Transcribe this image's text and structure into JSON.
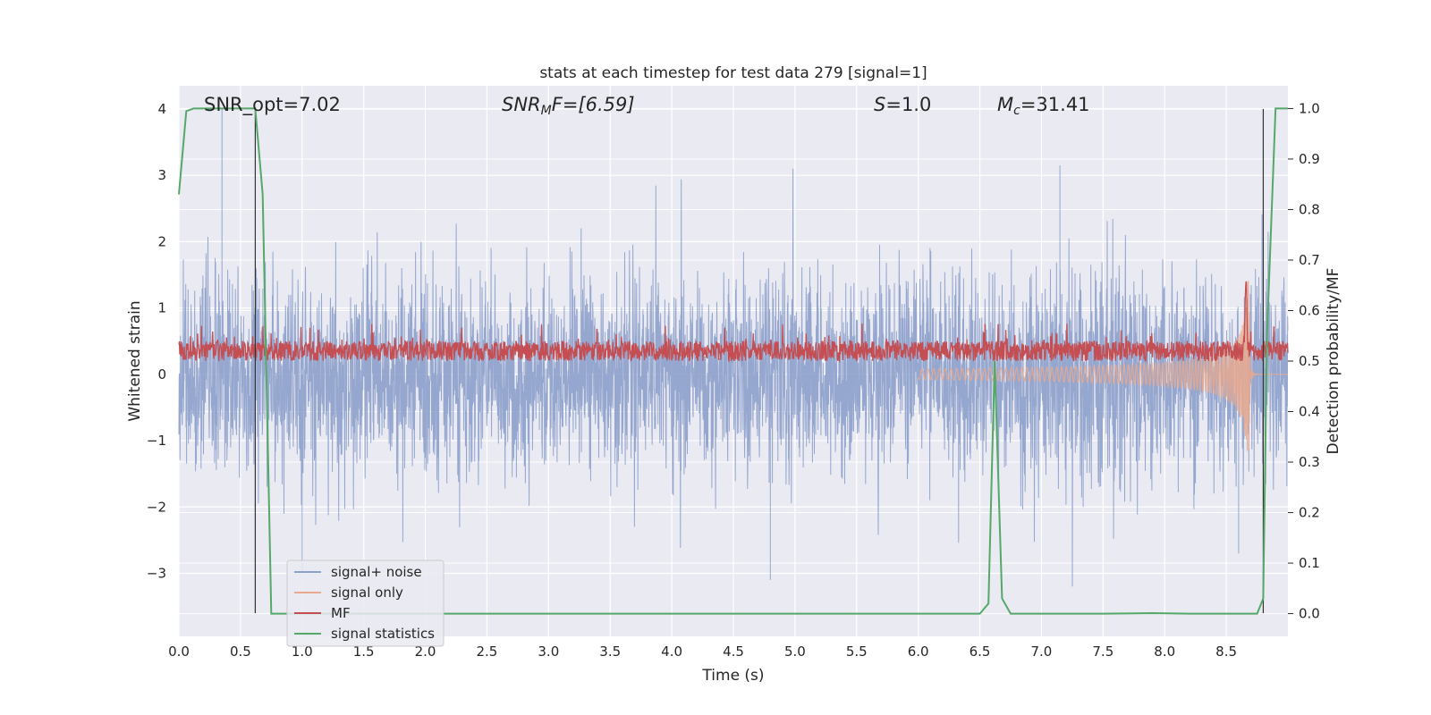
{
  "chart_data": {
    "type": "line",
    "title": "stats at each timestep for test data 279 [signal=1]",
    "xlabel": "Time (s)",
    "ylabel": "Whitened strain",
    "y2label": "Detection probability/MF",
    "xlim": [
      0.0,
      9.0
    ],
    "ylim": [
      -3.95,
      4.35
    ],
    "y2lim": [
      -0.045,
      1.045
    ],
    "xticks": [
      "0.0",
      "0.5",
      "1.0",
      "1.5",
      "2.0",
      "2.5",
      "3.0",
      "3.5",
      "4.0",
      "4.5",
      "5.0",
      "5.5",
      "6.0",
      "6.5",
      "7.0",
      "7.5",
      "8.0",
      "8.5"
    ],
    "yticks": [
      "4",
      "3",
      "2",
      "1",
      "0",
      "−1",
      "−2",
      "−3"
    ],
    "y2ticks": [
      "1.0",
      "0.9",
      "0.8",
      "0.7",
      "0.6",
      "0.5",
      "0.4",
      "0.3",
      "0.2",
      "0.1",
      "0.0"
    ],
    "grid": true,
    "legend_position": "lower-left",
    "annotations": {
      "snr_opt": "SNR_opt=7.02",
      "snr_mf_sym": "SNR",
      "snr_mf_sub": "M",
      "snr_mf_rest": "F=[6.59]",
      "s_sym": "S",
      "s_rest": "=1.0",
      "mc_sym": "M",
      "mc_sub": "c",
      "mc_rest": "=31.41"
    },
    "series": [
      {
        "name": "signal+ noise",
        "color": "#8da0cb",
        "axis": "left",
        "envelope": {
          "typical": [
            -1.3,
            1.3
          ],
          "peaks_max": 4.0,
          "peaks_min": -3.6
        }
      },
      {
        "name": "signal only",
        "color": "#e9a98e",
        "axis": "left",
        "chirp": {
          "start": 6.0,
          "merger": 8.68,
          "peak_amplitude": 1.55
        }
      },
      {
        "name": "MF",
        "color": "#c44e52",
        "axis": "right",
        "baseline": 0.52,
        "fluctuation": [
          0.49,
          0.58
        ],
        "peak": {
          "x": 8.66,
          "y": 0.67
        }
      },
      {
        "name": "signal statistics",
        "color": "#55a868",
        "axis": "right",
        "x": [
          0.0,
          0.06,
          0.12,
          0.2,
          0.3,
          0.4,
          0.5,
          0.55,
          0.6,
          0.62,
          0.68,
          0.75,
          0.8,
          0.9,
          1.5,
          3.0,
          4.5,
          6.0,
          6.4,
          6.5,
          6.57,
          6.62,
          6.68,
          6.75,
          7.5,
          7.9,
          8.2,
          8.6,
          8.75,
          8.8,
          8.83,
          8.9,
          8.95,
          9.0
        ],
        "y": [
          0.83,
          0.995,
          1.0,
          1.0,
          1.0,
          1.0,
          1.0,
          1.0,
          1.0,
          1.0,
          0.83,
          0.0,
          0.0,
          0.0,
          0.0,
          0.0,
          0.0,
          0.0,
          0.0,
          0.0,
          0.02,
          0.5,
          0.03,
          0.0,
          0.0,
          0.001,
          0.0,
          0.0,
          0.0,
          0.03,
          0.55,
          1.0,
          1.0,
          1.0
        ]
      }
    ],
    "vertical_markers": [
      0.62,
      8.8
    ]
  }
}
